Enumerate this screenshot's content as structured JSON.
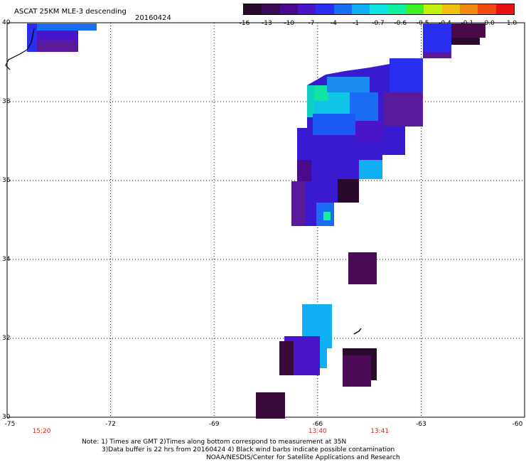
{
  "header": {
    "title": "ASCAT 25KM MLE-3 descending",
    "date": "20160424"
  },
  "colorbar": {
    "labels": [
      "-16",
      "-13",
      "-10",
      "-7",
      "-4",
      "-1",
      "-0.7",
      "-0.6",
      "-0.5",
      "-0.4",
      "-0.1",
      "0.0",
      "1.0"
    ],
    "colors": [
      "#2a0a2a",
      "#3a0a55",
      "#4a0a8c",
      "#4a14c8",
      "#2a2ef0",
      "#1a6cf2",
      "#10aef2",
      "#10e4e0",
      "#10f0a0",
      "#3cf024",
      "#c4f010",
      "#f2c010",
      "#f28a10",
      "#f04a10",
      "#e81010"
    ]
  },
  "axes": {
    "lat_labels": [
      "40",
      "38",
      "36",
      "34",
      "32",
      "30"
    ],
    "lon_labels": [
      "-75",
      "-72",
      "-69",
      "-66",
      "-63",
      "-60"
    ],
    "time_labels": [
      {
        "label": "15:20",
        "lon": -74.0
      },
      {
        "label": "13:40",
        "lon": -66.0
      },
      {
        "label": "13:41",
        "lon": -64.2
      }
    ]
  },
  "notes": {
    "line1": "Note: 1) Times are GMT 2)Times along bottom correspond to measurement at 35N",
    "line2": "3)Data buffer is 22 hrs from 20160424 4) Black wind barbs indicate possible contamination",
    "line3": "NOAA/NESDIS/Center for Satellite Applications and Research"
  }
}
